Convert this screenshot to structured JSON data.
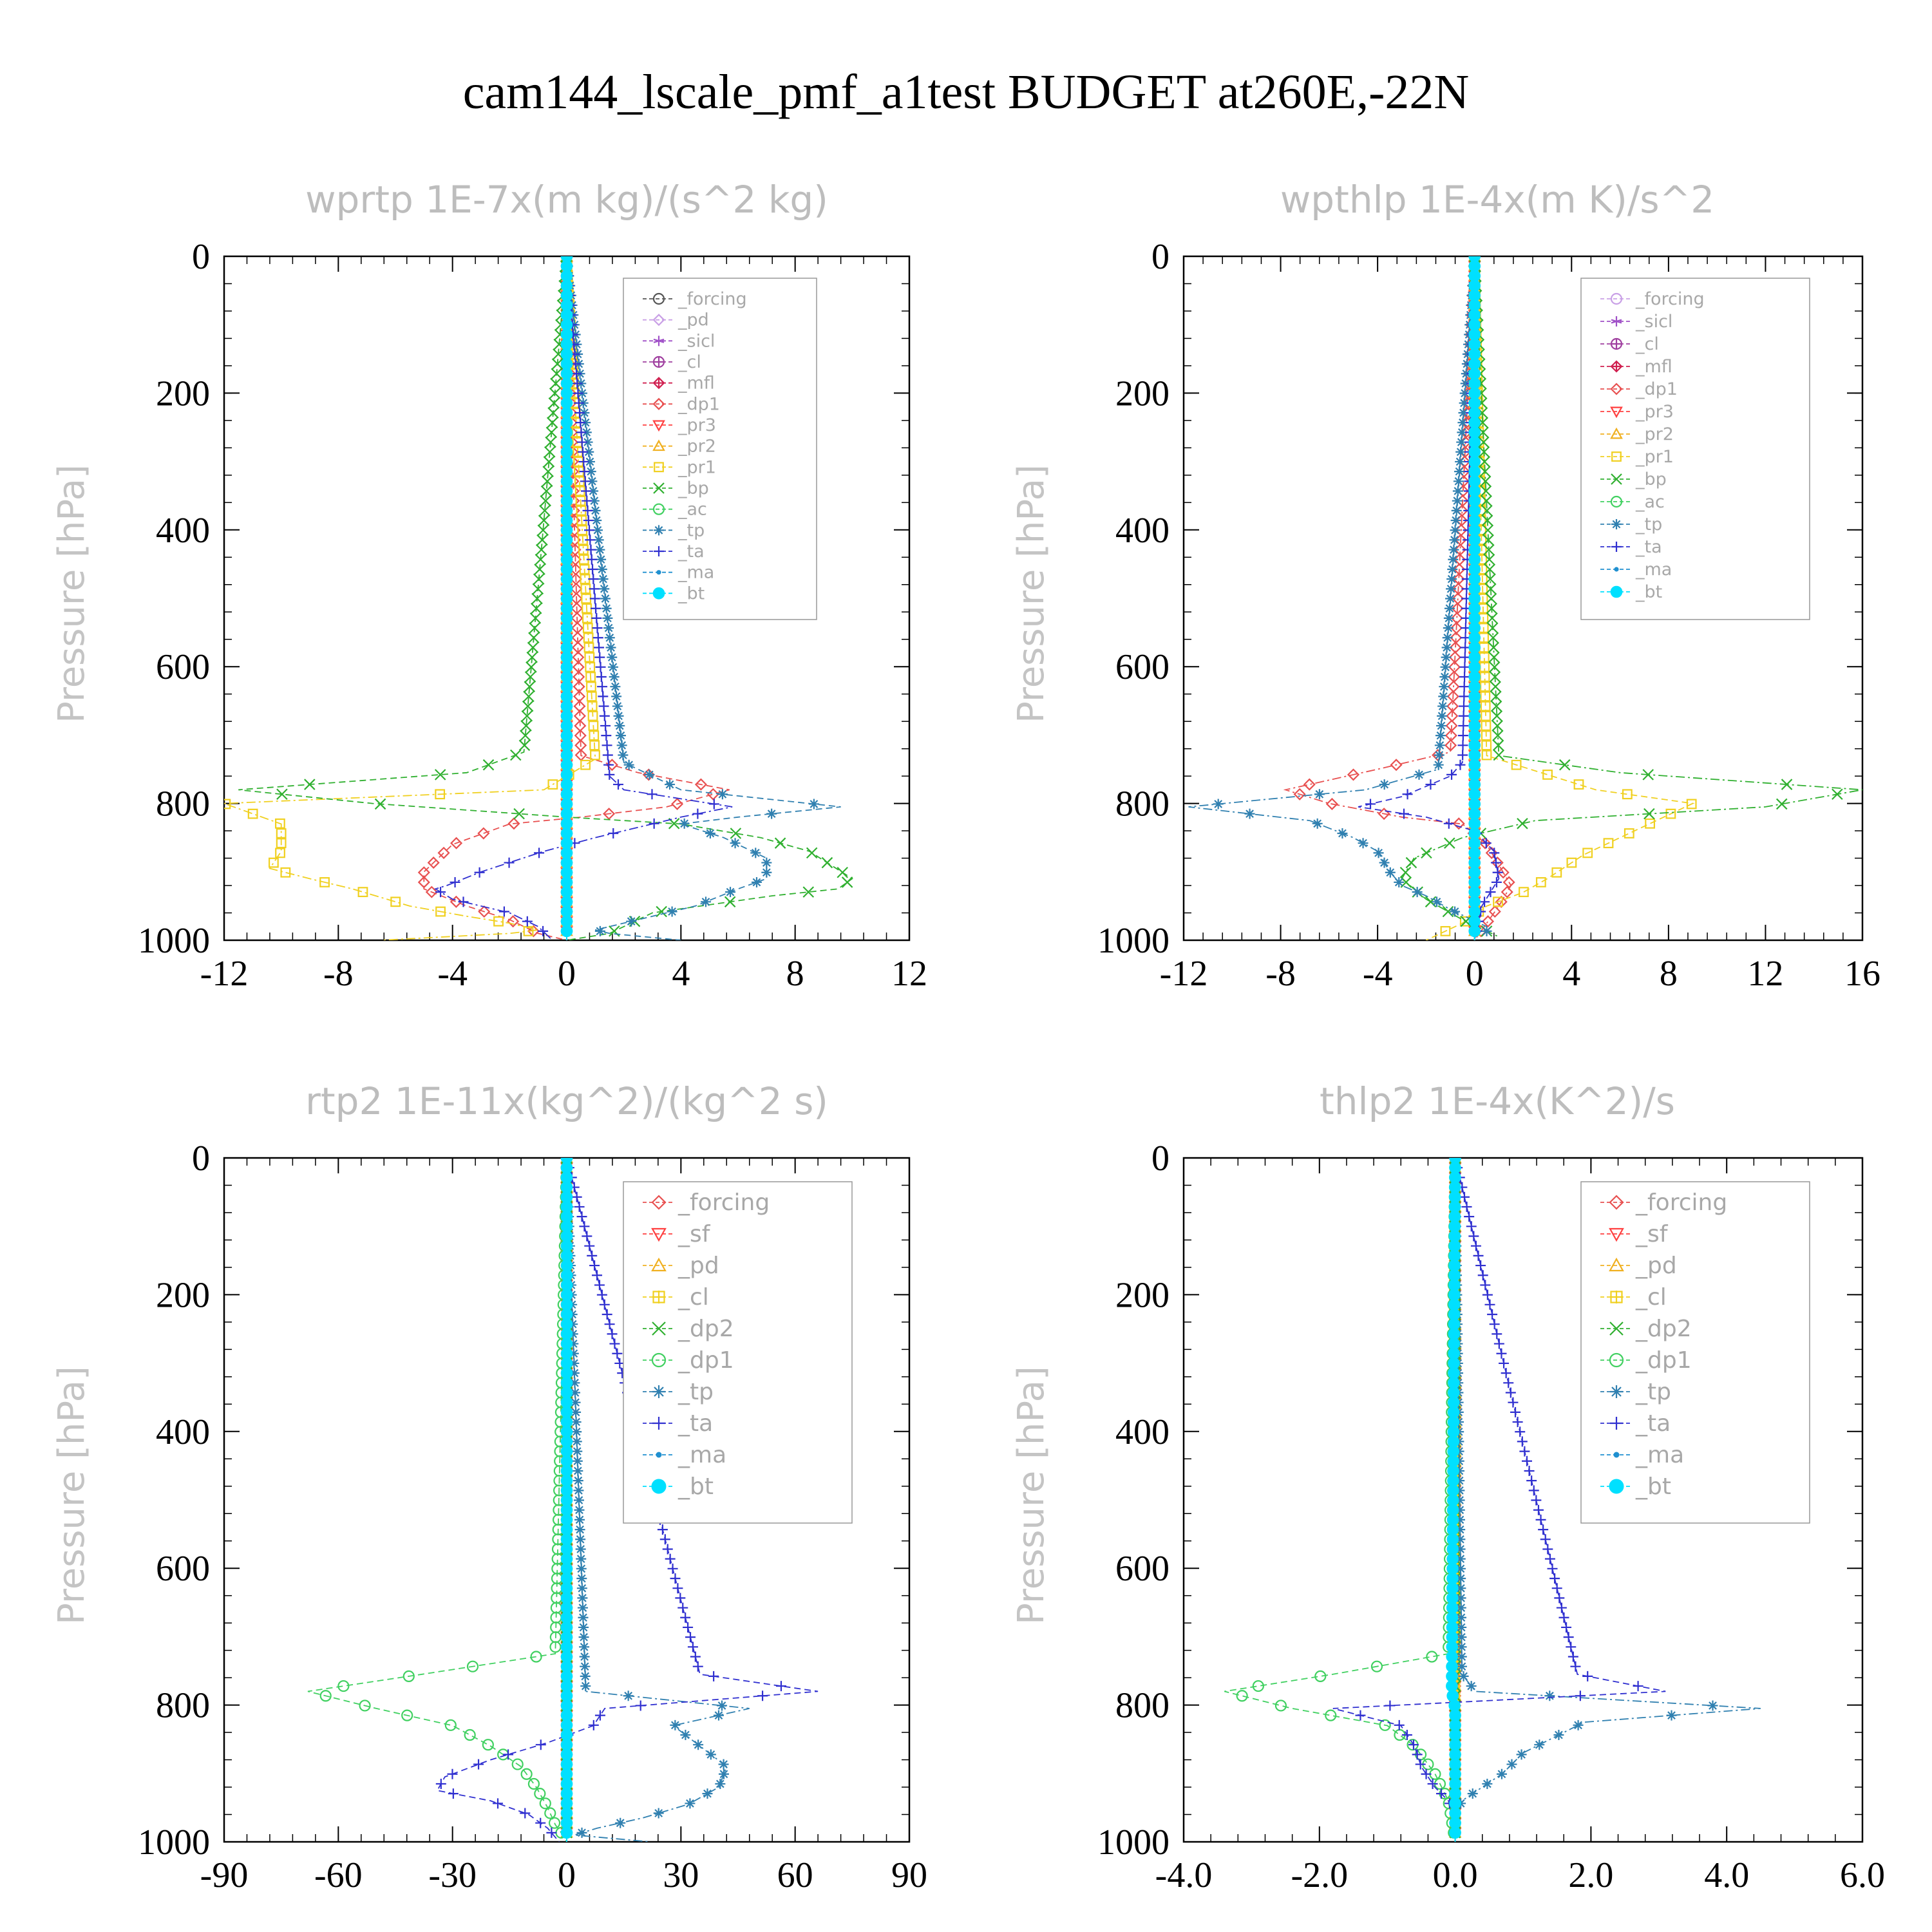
{
  "figure": {
    "title": "cam144_lscale_pmf_a1test  BUDGET at260E,-22N"
  },
  "colors": {
    "forcing": "#555555",
    "pd": "#c9a0e6",
    "sicl": "#a050c8",
    "cl": "#a040a0",
    "mfl": "#d02050",
    "dp1": "#e85050",
    "pr3": "#ff4040",
    "pr2": "#f0b020",
    "pr1": "#f0d020",
    "bp": "#30b030",
    "ac": "#40d060",
    "tp": "#3080b0",
    "ta": "#3030d0",
    "ma": "#2090d0",
    "bt": "#00e0ff"
  },
  "chart_data": [
    {
      "type": "line",
      "title": "wprtp  1E-7x(m kg)/(s^2 kg)",
      "ylabel": "Pressure [hPa]",
      "xlim": [
        -12,
        12
      ],
      "ylim": [
        1000,
        0
      ],
      "xticks": [
        -12,
        -8,
        -4,
        0,
        4,
        8,
        12
      ],
      "yticks": [
        0,
        200,
        400,
        600,
        800,
        1000
      ],
      "legend_position": "top-right",
      "series": [
        {
          "name": "_forcing",
          "color": "#555555",
          "marker": "circle-open",
          "x": [
            0,
            0
          ],
          "y": [
            0,
            1000
          ]
        },
        {
          "name": "_pd",
          "color": "#c9a0e6",
          "marker": "diamond-open",
          "x": [
            0,
            0
          ],
          "y": [
            0,
            1000
          ]
        },
        {
          "name": "_sicl",
          "color": "#a050c8",
          "marker": "star",
          "x": [
            0,
            0
          ],
          "y": [
            0,
            1000
          ]
        },
        {
          "name": "_cl",
          "color": "#a040a0",
          "marker": "circle-plus",
          "x": [
            0,
            0
          ],
          "y": [
            0,
            1000
          ]
        },
        {
          "name": "_mfl",
          "color": "#d02050",
          "marker": "diamond-plus",
          "x": [
            0,
            0
          ],
          "y": [
            0,
            1000
          ]
        },
        {
          "name": "_dp1",
          "color": "#e85050",
          "marker": "diamond-open",
          "x": [
            0,
            0.5,
            2.5,
            5.7,
            3.5,
            0.5,
            -2,
            -4,
            -5,
            -5,
            -3.5,
            -2,
            -1,
            0
          ],
          "y": [
            0,
            730,
            755,
            780,
            805,
            820,
            830,
            860,
            900,
            925,
            950,
            970,
            990,
            1000
          ]
        },
        {
          "name": "_pr3",
          "color": "#ff4040",
          "marker": "triangle-down",
          "x": [
            0,
            0
          ],
          "y": [
            0,
            1000
          ]
        },
        {
          "name": "_pr2",
          "color": "#f0b020",
          "marker": "triangle-up",
          "x": [
            0,
            0
          ],
          "y": [
            0,
            1000
          ]
        },
        {
          "name": "_pr1",
          "color": "#f0d020",
          "marker": "square-open",
          "x": [
            0,
            1,
            -0.8,
            -12,
            -10,
            -10,
            -10.4,
            -9,
            -7.5,
            -5.5,
            -3.5,
            -2,
            -1,
            -2,
            -6.5
          ],
          "y": [
            0,
            735,
            780,
            800,
            830,
            870,
            895,
            910,
            925,
            950,
            965,
            975,
            985,
            990,
            1000
          ]
        },
        {
          "name": "_bp",
          "color": "#30b030",
          "marker": "x",
          "x": [
            0,
            -1.5,
            -3.5,
            -11.5,
            -6.8,
            0,
            4,
            6.8,
            8.5,
            10,
            9.5,
            7.2,
            3,
            1.5,
            0
          ],
          "y": [
            0,
            725,
            755,
            780,
            800,
            820,
            830,
            850,
            870,
            910,
            925,
            935,
            960,
            990,
            1000
          ]
        },
        {
          "name": "_ac",
          "color": "#40d060",
          "marker": "circle-open",
          "x": [
            0,
            0
          ],
          "y": [
            0,
            1000
          ]
        },
        {
          "name": "_tp",
          "color": "#3080b0",
          "marker": "asterisk",
          "x": [
            0,
            2,
            4,
            9.6,
            6,
            4,
            5.5,
            7,
            7,
            6,
            4.5,
            3.5,
            2.5,
            1,
            1.5,
            4
          ],
          "y": [
            0,
            740,
            780,
            805,
            820,
            830,
            850,
            880,
            910,
            925,
            950,
            960,
            970,
            985,
            990,
            1000
          ]
        },
        {
          "name": "_ta",
          "color": "#3030d0",
          "marker": "plus",
          "x": [
            0,
            1.5,
            2,
            5.8,
            4,
            1,
            -0.8,
            -3,
            -4.2,
            -4.6,
            -4,
            -2,
            -1,
            -0.5
          ],
          "y": [
            0,
            760,
            780,
            805,
            820,
            850,
            870,
            900,
            920,
            925,
            940,
            960,
            980,
            1000
          ]
        },
        {
          "name": "_ma",
          "color": "#2090d0",
          "marker": "dot",
          "x": [
            0,
            0
          ],
          "y": [
            0,
            1000
          ]
        },
        {
          "name": "_bt",
          "color": "#00e0ff",
          "marker": "filled-circle",
          "x": [
            0,
            0
          ],
          "y": [
            0,
            1000
          ]
        }
      ]
    },
    {
      "type": "line",
      "title": "wpthlp  1E-4x(m K)/s^2",
      "ylabel": "Pressure [hPa]",
      "xlim": [
        -12,
        16
      ],
      "ylim": [
        1000,
        0
      ],
      "xticks": [
        -12,
        -8,
        -4,
        0,
        4,
        8,
        12,
        16
      ],
      "yticks": [
        0,
        200,
        400,
        600,
        800,
        1000
      ],
      "legend_position": "top-right",
      "series": [
        {
          "name": "_forcing",
          "color": "#c9a0e6",
          "marker": "circle-open",
          "x": [
            0,
            0
          ],
          "y": [
            0,
            1000
          ]
        },
        {
          "name": "_sicl",
          "color": "#a050c8",
          "marker": "star",
          "x": [
            0,
            0
          ],
          "y": [
            0,
            1000
          ]
        },
        {
          "name": "_cl",
          "color": "#a040a0",
          "marker": "circle-plus",
          "x": [
            0,
            0
          ],
          "y": [
            0,
            1000
          ]
        },
        {
          "name": "_mfl",
          "color": "#d02050",
          "marker": "diamond-plus",
          "x": [
            0,
            0
          ],
          "y": [
            0,
            1000
          ]
        },
        {
          "name": "_dp1",
          "color": "#e85050",
          "marker": "diamond-open",
          "x": [
            0,
            -1,
            -4,
            -7.8,
            -6,
            -3,
            -0.5,
            0.5,
            1,
            1.5,
            1,
            0.5,
            0
          ],
          "y": [
            0,
            725,
            750,
            780,
            800,
            820,
            830,
            860,
            890,
            920,
            950,
            975,
            1000
          ]
        },
        {
          "name": "_pr3",
          "color": "#ff4040",
          "marker": "triangle-down",
          "x": [
            0,
            0
          ],
          "y": [
            0,
            1000
          ]
        },
        {
          "name": "_pr2",
          "color": "#f0b020",
          "marker": "triangle-up",
          "x": [
            0,
            0
          ],
          "y": [
            0,
            1000
          ]
        },
        {
          "name": "_pr1",
          "color": "#f0d020",
          "marker": "square-open",
          "x": [
            0,
            0.5,
            5,
            9,
            7.5,
            6,
            4.5,
            3,
            2,
            0.5,
            -0.5,
            -2
          ],
          "y": [
            0,
            730,
            780,
            800,
            825,
            850,
            875,
            910,
            930,
            950,
            975,
            1000
          ]
        },
        {
          "name": "_bp",
          "color": "#30b030",
          "marker": "x",
          "x": [
            0,
            1,
            6,
            16,
            12,
            2.5,
            -0.5,
            -2.5,
            -3,
            -2,
            -0.5,
            1
          ],
          "y": [
            0,
            730,
            755,
            780,
            805,
            825,
            850,
            880,
            910,
            940,
            970,
            995
          ]
        },
        {
          "name": "_ac",
          "color": "#40d060",
          "marker": "circle-open",
          "x": [
            0,
            0
          ],
          "y": [
            0,
            1000
          ]
        },
        {
          "name": "_tp",
          "color": "#3080b0",
          "marker": "asterisk",
          "x": [
            0,
            -1.5,
            -4.5,
            -11.8,
            -6.8,
            -5,
            -4,
            -3.5,
            -3,
            -2,
            -1,
            0.5
          ],
          "y": [
            0,
            750,
            780,
            805,
            825,
            850,
            870,
            900,
            920,
            935,
            955,
            980
          ]
        },
        {
          "name": "_ta",
          "color": "#3030d0",
          "marker": "plus",
          "x": [
            0,
            -0.5,
            -1,
            -3,
            -4.8,
            -2,
            0,
            0.8,
            1,
            0.3,
            0
          ],
          "y": [
            0,
            740,
            760,
            790,
            805,
            820,
            840,
            870,
            910,
            950,
            1000
          ]
        },
        {
          "name": "_ma",
          "color": "#2090d0",
          "marker": "dot",
          "x": [
            0,
            0
          ],
          "y": [
            0,
            1000
          ]
        },
        {
          "name": "_bt",
          "color": "#00e0ff",
          "marker": "filled-circle",
          "x": [
            0,
            0
          ],
          "y": [
            0,
            1000
          ]
        }
      ]
    },
    {
      "type": "line",
      "title": "rtp2  1E-11x(kg^2)/(kg^2 s)",
      "ylabel": "Pressure [hPa]",
      "xlim": [
        -90,
        90
      ],
      "ylim": [
        1000,
        0
      ],
      "xticks": [
        -90,
        -60,
        -30,
        0,
        30,
        60,
        90
      ],
      "yticks": [
        0,
        200,
        400,
        600,
        800,
        1000
      ],
      "legend_position": "top-right",
      "series": [
        {
          "name": "_forcing",
          "color": "#e85050",
          "marker": "diamond-open",
          "x": [
            0,
            0
          ],
          "y": [
            0,
            1000
          ]
        },
        {
          "name": "_sf",
          "color": "#ff4040",
          "marker": "triangle-down",
          "x": [
            0,
            0
          ],
          "y": [
            0,
            1000
          ]
        },
        {
          "name": "_pd",
          "color": "#f0b020",
          "marker": "triangle-up",
          "x": [
            0,
            0
          ],
          "y": [
            0,
            1000
          ]
        },
        {
          "name": "_cl",
          "color": "#f0d020",
          "marker": "square-plus",
          "x": [
            0,
            0
          ],
          "y": [
            0,
            1000
          ]
        },
        {
          "name": "_dp2",
          "color": "#30b030",
          "marker": "x",
          "x": [
            0,
            0
          ],
          "y": [
            0,
            1000
          ]
        },
        {
          "name": "_dp1",
          "color": "#40d060",
          "marker": "circle-open",
          "x": [
            0,
            -3,
            -38,
            -68,
            -50,
            -30,
            -20,
            -12,
            -8,
            -5,
            -3,
            -1,
            0
          ],
          "y": [
            0,
            725,
            755,
            780,
            805,
            830,
            860,
            890,
            920,
            950,
            975,
            990,
            1000
          ]
        },
        {
          "name": "_tp",
          "color": "#3080b0",
          "marker": "asterisk",
          "x": [
            0,
            5,
            48,
            28,
            35,
            42,
            40,
            32,
            20,
            8,
            2,
            22
          ],
          "y": [
            0,
            780,
            805,
            830,
            860,
            890,
            920,
            945,
            965,
            980,
            990,
            1000
          ]
        },
        {
          "name": "_ta",
          "color": "#3030d0",
          "marker": "plus",
          "x": [
            0,
            35,
            66,
            10,
            7,
            -5,
            -20,
            -32,
            -34,
            -20,
            -10,
            -5,
            -2
          ],
          "y": [
            0,
            755,
            780,
            805,
            830,
            855,
            880,
            905,
            925,
            940,
            960,
            980,
            1000
          ]
        },
        {
          "name": "_ma",
          "color": "#2090d0",
          "marker": "dot",
          "x": [
            0,
            0
          ],
          "y": [
            0,
            1000
          ]
        },
        {
          "name": "_bt",
          "color": "#00e0ff",
          "marker": "filled-circle",
          "x": [
            0,
            0
          ],
          "y": [
            0,
            1000
          ]
        }
      ]
    },
    {
      "type": "line",
      "title": "thlp2  1E-4x(K^2)/s",
      "ylabel": "Pressure [hPa]",
      "xlim": [
        -4.0,
        6.0
      ],
      "ylim": [
        1000,
        0
      ],
      "xticks": [
        -4.0,
        -2.0,
        0.0,
        2.0,
        4.0,
        6.0
      ],
      "xtick_labels": [
        "-4.0",
        "-2.0",
        "0.0",
        "2.0",
        "4.0",
        "6.0"
      ],
      "yticks": [
        0,
        200,
        400,
        600,
        800,
        1000
      ],
      "legend_position": "top-right",
      "series": [
        {
          "name": "_forcing",
          "color": "#e85050",
          "marker": "diamond-open",
          "x": [
            0,
            0
          ],
          "y": [
            0,
            1000
          ]
        },
        {
          "name": "_sf",
          "color": "#ff4040",
          "marker": "triangle-down",
          "x": [
            0,
            0
          ],
          "y": [
            0,
            1000
          ]
        },
        {
          "name": "_pd",
          "color": "#f0b020",
          "marker": "triangle-up",
          "x": [
            0,
            0
          ],
          "y": [
            0,
            1000
          ]
        },
        {
          "name": "_cl",
          "color": "#f0d020",
          "marker": "square-plus",
          "x": [
            0,
            0
          ],
          "y": [
            0,
            1000
          ]
        },
        {
          "name": "_dp2",
          "color": "#30b030",
          "marker": "x",
          "x": [
            0,
            0
          ],
          "y": [
            0,
            1000
          ]
        },
        {
          "name": "_dp1",
          "color": "#40d060",
          "marker": "circle-open",
          "x": [
            0,
            -0.1,
            -1.8,
            -3.4,
            -2.4,
            -1,
            -0.6,
            -0.3,
            -0.1,
            0
          ],
          "y": [
            0,
            725,
            755,
            780,
            805,
            830,
            860,
            900,
            940,
            1000
          ]
        },
        {
          "name": "_tp",
          "color": "#3080b0",
          "marker": "asterisk",
          "x": [
            0,
            0.1,
            0.3,
            4.5,
            1.9,
            1.4,
            1,
            0.7,
            0.4,
            0.1,
            0
          ],
          "y": [
            0,
            755,
            780,
            805,
            825,
            850,
            870,
            900,
            920,
            940,
            960
          ]
        },
        {
          "name": "_ta",
          "color": "#3030d0",
          "marker": "plus",
          "x": [
            0,
            1.8,
            3.1,
            0.2,
            -1.8,
            -0.8,
            -0.6,
            -0.5,
            -0.3,
            -0.1,
            0
          ],
          "y": [
            0,
            755,
            780,
            795,
            805,
            830,
            860,
            890,
            920,
            940,
            960
          ]
        },
        {
          "name": "_ma",
          "color": "#2090d0",
          "marker": "dot",
          "x": [
            0,
            0
          ],
          "y": [
            0,
            1000
          ]
        },
        {
          "name": "_bt",
          "color": "#00e0ff",
          "marker": "filled-circle",
          "x": [
            0,
            -0.05,
            0,
            0
          ],
          "y": [
            0,
            780,
            805,
            1000
          ]
        }
      ]
    }
  ]
}
